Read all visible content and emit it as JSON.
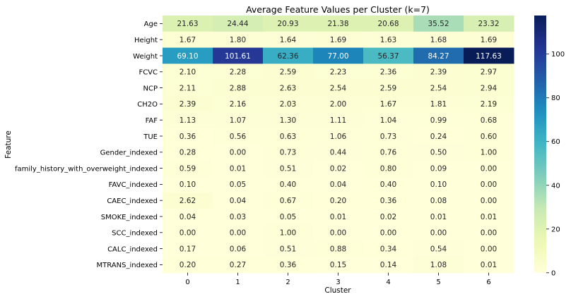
{
  "chart_data": {
    "type": "heatmap",
    "title": "Average Feature Values per Cluster (k=7)",
    "xlabel": "Cluster",
    "ylabel": "Feature",
    "x_categories": [
      "0",
      "1",
      "2",
      "3",
      "4",
      "5",
      "6"
    ],
    "y_categories": [
      "Age",
      "Height",
      "Weight",
      "FCVC",
      "NCP",
      "CH2O",
      "FAF",
      "TUE",
      "Gender_indexed",
      "family_history_with_overweight_indexed",
      "FAVC_indexed",
      "CAEC_indexed",
      "SMOKE_indexed",
      "SCC_indexed",
      "CALC_indexed",
      "MTRANS_indexed"
    ],
    "values": [
      [
        21.63,
        24.44,
        20.93,
        21.38,
        20.68,
        35.52,
        23.32
      ],
      [
        1.67,
        1.8,
        1.64,
        1.69,
        1.63,
        1.68,
        1.69
      ],
      [
        69.1,
        101.61,
        62.36,
        77.0,
        56.37,
        84.27,
        117.63
      ],
      [
        2.1,
        2.28,
        2.59,
        2.23,
        2.36,
        2.39,
        2.97
      ],
      [
        2.11,
        2.88,
        2.63,
        2.54,
        2.59,
        2.54,
        2.94
      ],
      [
        2.39,
        2.16,
        2.03,
        2.0,
        1.67,
        1.81,
        2.19
      ],
      [
        1.13,
        1.07,
        1.3,
        1.11,
        1.04,
        0.99,
        0.68
      ],
      [
        0.36,
        0.56,
        0.63,
        1.06,
        0.73,
        0.24,
        0.6
      ],
      [
        0.28,
        0.0,
        0.73,
        0.44,
        0.76,
        0.5,
        1.0
      ],
      [
        0.59,
        0.01,
        0.51,
        0.02,
        0.8,
        0.09,
        0.0
      ],
      [
        0.1,
        0.05,
        0.4,
        0.04,
        0.4,
        0.1,
        0.0
      ],
      [
        2.62,
        0.04,
        0.67,
        0.2,
        0.36,
        0.08,
        0.0
      ],
      [
        0.04,
        0.03,
        0.05,
        0.01,
        0.02,
        0.01,
        0.01
      ],
      [
        0.0,
        0.0,
        1.0,
        0.0,
        0.0,
        0.0,
        0.0
      ],
      [
        0.17,
        0.06,
        0.51,
        0.88,
        0.34,
        0.54,
        0.0
      ],
      [
        0.2,
        0.27,
        0.36,
        0.15,
        0.14,
        1.08,
        0.01
      ]
    ],
    "value_format": "2 decimals",
    "colormap": "YlGnBu",
    "colorbar": {
      "range": [
        0,
        117.63
      ],
      "ticks": [
        0,
        20,
        40,
        60,
        80,
        100
      ]
    },
    "grid": false,
    "legend": "colorbar-right"
  }
}
